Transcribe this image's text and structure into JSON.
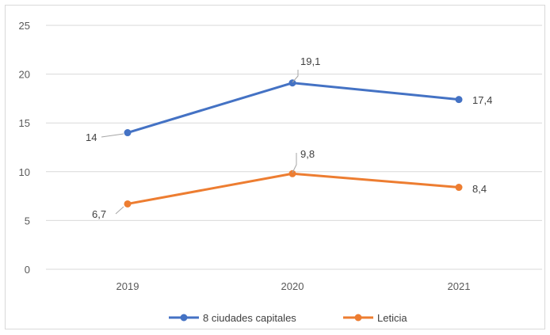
{
  "chart_data": {
    "type": "line",
    "title": "",
    "xlabel": "",
    "ylabel": "",
    "categories": [
      "2019",
      "2020",
      "2021"
    ],
    "ylim": [
      0,
      25
    ],
    "yticks": [
      "0",
      "5",
      "10",
      "15",
      "20",
      "25"
    ],
    "grid": true,
    "legend_position": "bottom",
    "series": [
      {
        "name": "8 ciudades capitales",
        "values": [
          14,
          19.1,
          17.4
        ],
        "labels": [
          "14",
          "19,1",
          "17,4"
        ],
        "color": "#4472c4"
      },
      {
        "name": "Leticia",
        "values": [
          6.7,
          9.8,
          8.4
        ],
        "labels": [
          "6,7",
          "9,8",
          "8,4"
        ],
        "color": "#ed7d31"
      }
    ]
  }
}
